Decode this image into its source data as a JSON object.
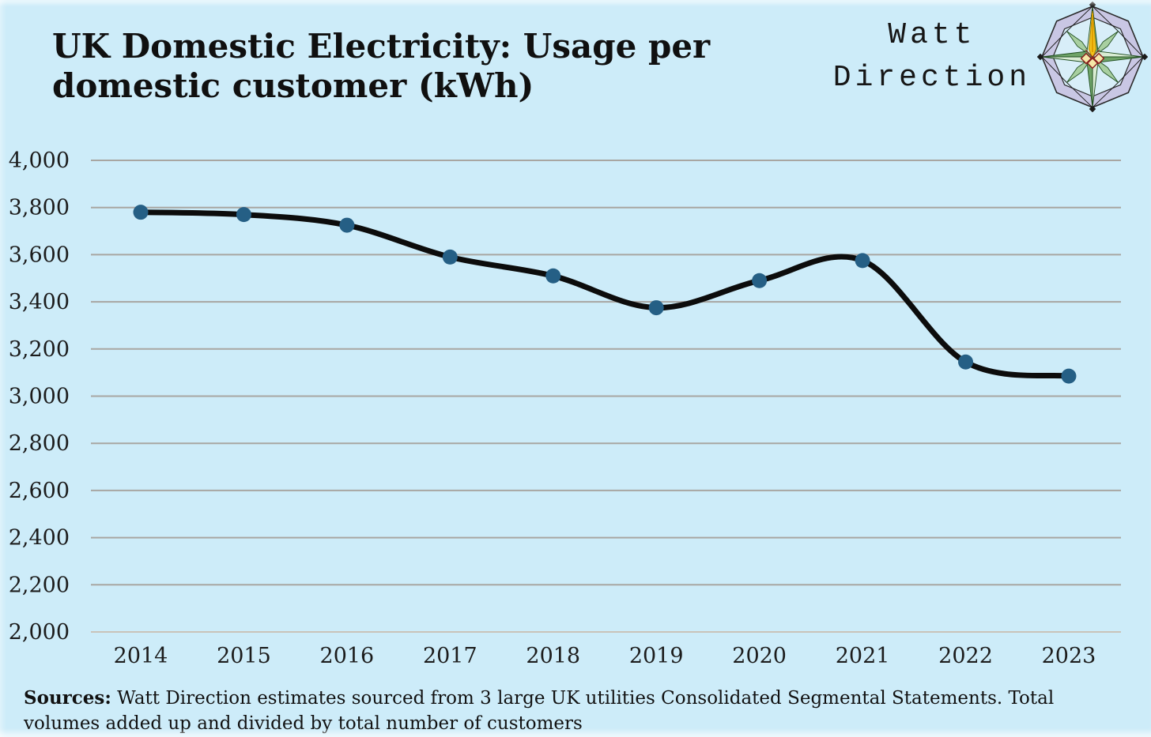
{
  "header": {
    "title": "UK Domestic Electricity: Usage per domestic customer (kWh)"
  },
  "brand": {
    "name_line1": "Watt",
    "name_line2": "Direction",
    "logo_icon": "compass-rose-icon"
  },
  "footer": {
    "sources_label": "Sources:",
    "sources_text": " Watt Direction estimates sourced from 3 large UK utilities Consolidated Segmental Statements. Total volumes added up and divided by total number of customers"
  },
  "chart_data": {
    "type": "line",
    "title": "UK Domestic Electricity: Usage per domestic customer (kWh)",
    "categories": [
      "2014",
      "2015",
      "2016",
      "2017",
      "2018",
      "2019",
      "2020",
      "2021",
      "2022",
      "2023"
    ],
    "values": [
      3780,
      3770,
      3725,
      3590,
      3510,
      3375,
      3490,
      3575,
      3145,
      3085
    ],
    "xlabel": "",
    "ylabel": "",
    "ylim": [
      2000,
      4000
    ],
    "ytick_step": 200,
    "grid": "horizontal",
    "smooth": true,
    "legend": "none",
    "colors": {
      "background": "#cdecf9",
      "line": "#0c0c0c",
      "marker": "#255f85",
      "gridline": "#a8a6a2",
      "baseline_gridline": "#c9c3b9",
      "text": "#1c1c1c"
    }
  }
}
